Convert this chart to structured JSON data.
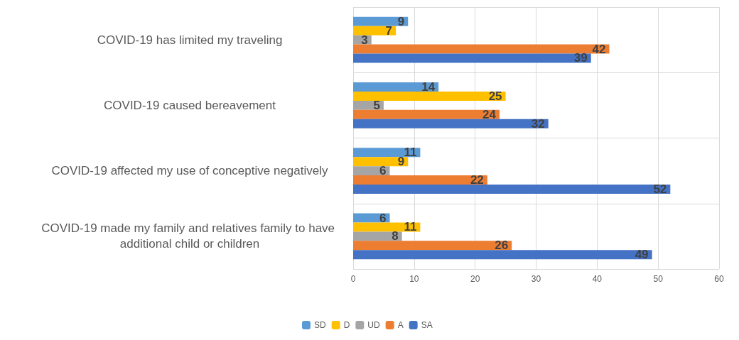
{
  "chart_data": {
    "type": "bar",
    "orientation": "horizontal",
    "categories": [
      "COVID-19 has limited my traveling",
      "COVID-19 caused bereavement",
      "COVID-19 affected my use of conceptive negatively",
      "COVID-19 made my family and relatives family to have additional child or children"
    ],
    "series": [
      {
        "name": "SD",
        "color": "#5b9bd5",
        "values": [
          9,
          14,
          11,
          6
        ]
      },
      {
        "name": "D",
        "color": "#ffc000",
        "values": [
          7,
          25,
          9,
          11
        ]
      },
      {
        "name": "UD",
        "color": "#a5a5a5",
        "values": [
          3,
          5,
          6,
          8
        ]
      },
      {
        "name": "A",
        "color": "#ed7d31",
        "values": [
          42,
          24,
          22,
          26
        ]
      },
      {
        "name": "SA",
        "color": "#4472c4",
        "values": [
          39,
          32,
          52,
          49
        ]
      }
    ],
    "xlim": [
      0,
      60
    ],
    "xticks": [
      0,
      10,
      20,
      30,
      40,
      50,
      60
    ],
    "grid": true,
    "legend": "bottom",
    "data_labels": true
  }
}
